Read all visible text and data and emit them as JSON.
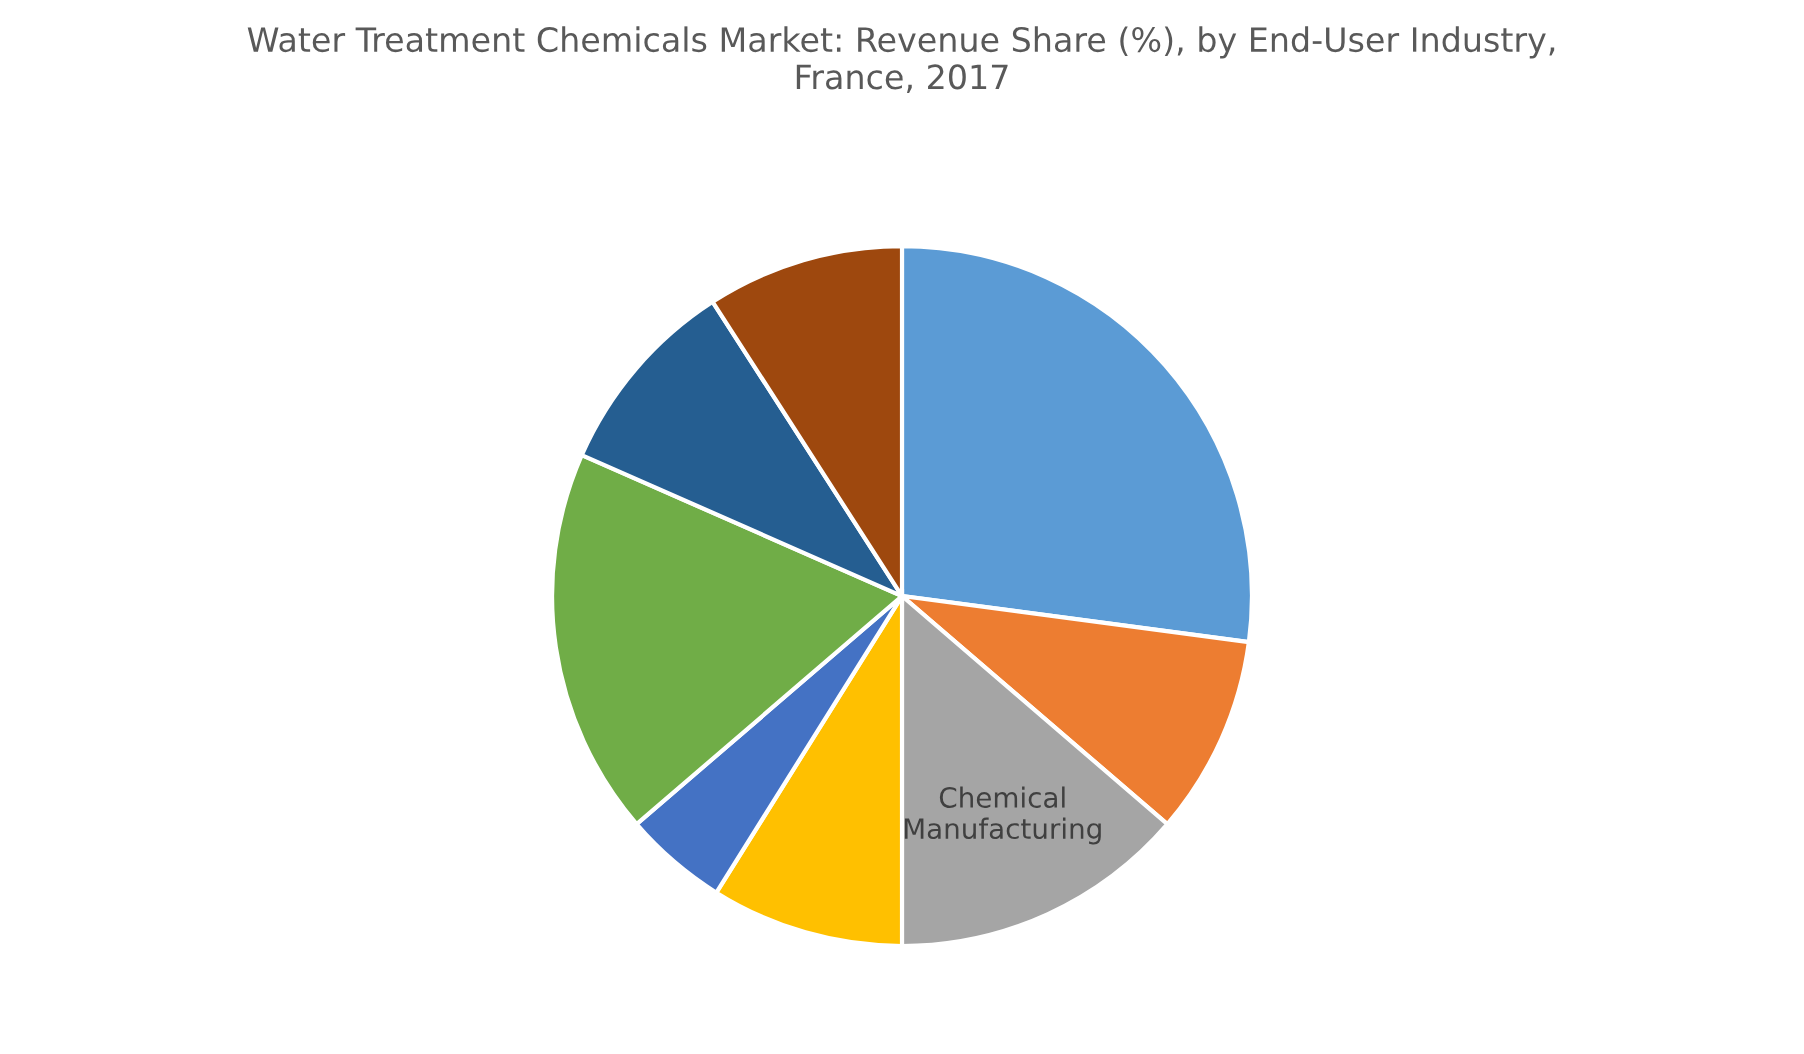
{
  "chart_data": {
    "type": "pie",
    "title": "Water Treatment Chemicals Market: Revenue Share (%), by End-User Industry,\nFrance, 2017",
    "categories": [
      null,
      null,
      "Chemical Manufacturing",
      null,
      null,
      null,
      null,
      null
    ],
    "values": [
      27.1,
      9.2,
      13.7,
      8.9,
      4.8,
      17.9,
      9.3,
      9.1
    ],
    "colors": [
      "#5b9bd5",
      "#ed7d31",
      "#a5a5a5",
      "#ffc000",
      "#4472c4",
      "#70ad47",
      "#255e91",
      "#9e480e"
    ],
    "legend": false
  }
}
